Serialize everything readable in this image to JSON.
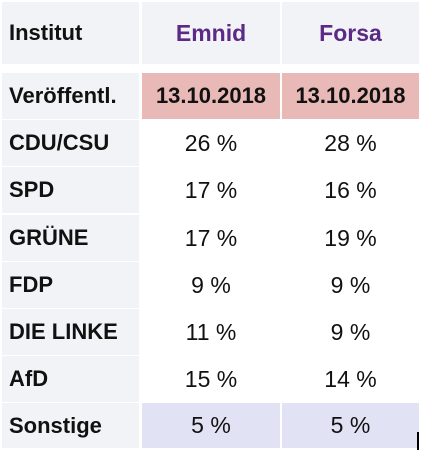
{
  "header": {
    "institute_label": "Institut",
    "columns": [
      "Emnid",
      "Forsa"
    ]
  },
  "published": {
    "label": "Veröffentl.",
    "values": [
      "13.10.2018",
      "13.10.2018"
    ]
  },
  "rows": [
    {
      "party": "CDU/CSU",
      "values": [
        "26 %",
        "28 %"
      ]
    },
    {
      "party": "SPD",
      "values": [
        "17 %",
        "16 %"
      ]
    },
    {
      "party": "GRÜNE",
      "values": [
        "17 %",
        "19 %"
      ]
    },
    {
      "party": "FDP",
      "values": [
        "9 %",
        "9 %"
      ]
    },
    {
      "party": "DIE LINKE",
      "values": [
        "11 %",
        "9 %"
      ]
    },
    {
      "party": "AfD",
      "values": [
        "15 %",
        "14 %"
      ]
    }
  ],
  "others": {
    "label": "Sonstige",
    "values": [
      "5 %",
      "5 %"
    ]
  },
  "colors": {
    "header_text": "#5b2a86",
    "date_background": "#e8b9b6",
    "others_background": "#e2e2f5",
    "label_background": "#f2f3f6"
  }
}
